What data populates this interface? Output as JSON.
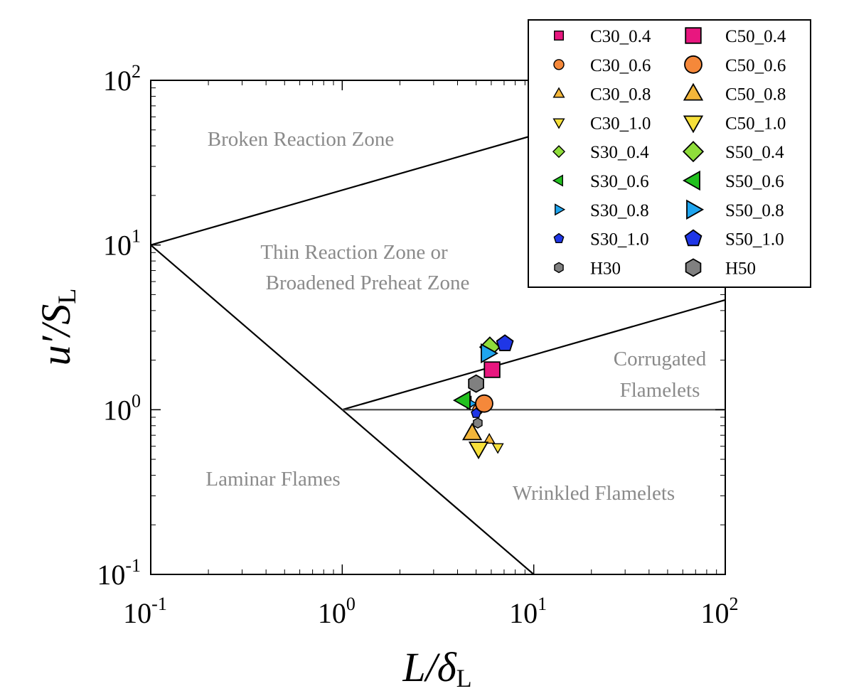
{
  "chart_data": {
    "type": "scatter",
    "xlabel": "L/δ",
    "xlabel_sub": "L",
    "ylabel": "u′/S",
    "ylabel_sub": "L",
    "xscale": "log",
    "yscale": "log",
    "xlim": [
      0.1,
      100
    ],
    "ylim": [
      0.1,
      100
    ],
    "xticks": [
      {
        "value": 0.1,
        "label": "10",
        "exponent": "-1"
      },
      {
        "value": 1,
        "label": "10",
        "exponent": "0"
      },
      {
        "value": 10,
        "label": "10",
        "exponent": "1"
      },
      {
        "value": 100,
        "label": "10",
        "exponent": "2"
      }
    ],
    "yticks": [
      {
        "value": 0.1,
        "label": "10",
        "exponent": "-1"
      },
      {
        "value": 1,
        "label": "10",
        "exponent": "0"
      },
      {
        "value": 10,
        "label": "10",
        "exponent": "1"
      },
      {
        "value": 100,
        "label": "10",
        "exponent": "2"
      }
    ],
    "legend": "upper right",
    "legend_columns": 2,
    "lines": [
      {
        "color": "#000000",
        "x": [
          0.1,
          1,
          10
        ],
        "values": [
          10,
          1,
          0.1
        ]
      },
      {
        "color": "#000000",
        "x": [
          0.1,
          100
        ],
        "values": [
          10,
          100
        ]
      },
      {
        "color": "#000000",
        "x": [
          1,
          100
        ],
        "values": [
          1,
          4.64
        ]
      },
      {
        "color": "#444444",
        "x": [
          1,
          100
        ],
        "values": [
          1,
          1
        ]
      }
    ],
    "annotations": [
      "Broken Reaction Zone",
      "Thin Reaction Zone or",
      "Broadened Preheat Zone",
      "Corrugated",
      "Flamelets",
      "Laminar Flames",
      "Wrinkled Flamelets"
    ],
    "series": [
      {
        "name": "C30_0.4",
        "color": "#e8177f",
        "marker": "square",
        "size": "small",
        "x": [
          5.9
        ],
        "values": [
          1.72
        ]
      },
      {
        "name": "C30_0.6",
        "color": "#f5883a",
        "marker": "circle",
        "size": "small",
        "x": [
          5.1
        ],
        "values": [
          1.0
        ]
      },
      {
        "name": "C30_0.8",
        "color": "#f3b63a",
        "marker": "triangle-up",
        "size": "small",
        "x": [
          5.86
        ],
        "values": [
          0.66
        ]
      },
      {
        "name": "C30_1.0",
        "color": "#f7e03a",
        "marker": "triangle-down",
        "size": "small",
        "x": [
          6.49
        ],
        "values": [
          0.59
        ]
      },
      {
        "name": "S30_0.4",
        "color": "#8fdd3a",
        "marker": "diamond",
        "size": "small",
        "x": [
          5.9
        ],
        "values": [
          2.45
        ]
      },
      {
        "name": "S30_0.6",
        "color": "#22c01e",
        "marker": "triangle-left",
        "size": "small",
        "x": [
          4.5
        ],
        "values": [
          1.12
        ]
      },
      {
        "name": "S30_0.8",
        "color": "#1fa5ef",
        "marker": "triangle-right",
        "size": "small",
        "x": [
          4.7
        ],
        "values": [
          1.09
        ]
      },
      {
        "name": "S30_1.0",
        "color": "#1f36e6",
        "marker": "pentagon",
        "size": "small",
        "x": [
          5.0
        ],
        "values": [
          0.95
        ]
      },
      {
        "name": "H30",
        "color": "#808080",
        "marker": "hexagon",
        "size": "small",
        "x": [
          5.1
        ],
        "values": [
          0.83
        ]
      },
      {
        "name": "C50_0.4",
        "color": "#e8177f",
        "marker": "square",
        "size": "large",
        "x": [
          6.06
        ],
        "values": [
          1.75
        ]
      },
      {
        "name": "C50_0.6",
        "color": "#f5883a",
        "marker": "circle",
        "size": "large",
        "x": [
          5.51
        ],
        "values": [
          1.09
        ]
      },
      {
        "name": "C50_0.8",
        "color": "#f3b63a",
        "marker": "triangle-up",
        "size": "large",
        "x": [
          4.77
        ],
        "values": [
          0.72
        ]
      },
      {
        "name": "C50_1.0",
        "color": "#f7e03a",
        "marker": "triangle-down",
        "size": "large",
        "x": [
          5.15
        ],
        "values": [
          0.58
        ]
      },
      {
        "name": "S50_0.4",
        "color": "#8fdd3a",
        "marker": "diamond",
        "size": "large",
        "x": [
          5.9
        ],
        "values": [
          2.4
        ]
      },
      {
        "name": "S50_0.6",
        "color": "#22c01e",
        "marker": "triangle-left",
        "size": "large",
        "x": [
          4.3
        ],
        "values": [
          1.14
        ]
      },
      {
        "name": "S50_0.8",
        "color": "#1fa5ef",
        "marker": "triangle-right",
        "size": "large",
        "x": [
          5.75
        ],
        "values": [
          2.2
        ]
      },
      {
        "name": "S50_1.0",
        "color": "#1f36e6",
        "marker": "pentagon",
        "size": "large",
        "x": [
          7.07
        ],
        "values": [
          2.52
        ]
      },
      {
        "name": "H50",
        "color": "#808080",
        "marker": "hexagon",
        "size": "large",
        "x": [
          5.0
        ],
        "values": [
          1.44
        ]
      }
    ]
  }
}
